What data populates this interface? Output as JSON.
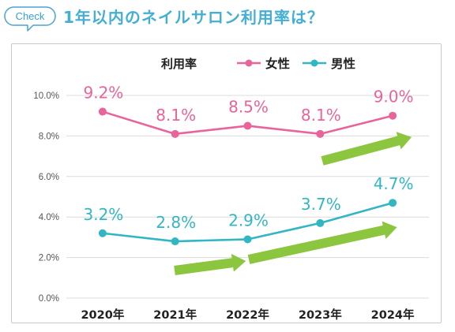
{
  "header": {
    "badge": "Check",
    "title": "1年以内のネイルサロン利用率は？"
  },
  "colors": {
    "accent": "#45aed3",
    "badge_border": "#4aa3d3",
    "women": "#e8649a",
    "men": "#33b6c3",
    "arrow": "#8cc63f",
    "grid": "#dcdcdc"
  },
  "icons": {
    "badge": "speech-bubble-icon",
    "trend": "up-arrow-icon"
  },
  "chart_data": {
    "type": "line",
    "legend_title": "利用率",
    "legend_position": "top",
    "grid": true,
    "categories": [
      "2020年",
      "2021年",
      "2022年",
      "2023年",
      "2024年"
    ],
    "ylim": [
      0,
      10
    ],
    "yticks": [
      0,
      2,
      4,
      6,
      8,
      10
    ],
    "ytick_labels": [
      "0.0%",
      "2.0%",
      "4.0%",
      "6.0%",
      "8.0%",
      "10.0%"
    ],
    "series": [
      {
        "name": "女性",
        "values": [
          9.2,
          8.1,
          8.5,
          8.1,
          9.0
        ],
        "data_labels": [
          "9.2%",
          "8.1%",
          "8.5%",
          "8.1%",
          "9.0%"
        ],
        "color": "#e8649a"
      },
      {
        "name": "男性",
        "values": [
          3.2,
          2.8,
          2.9,
          3.7,
          4.7
        ],
        "data_labels": [
          "3.2%",
          "2.8%",
          "2.9%",
          "3.7%",
          "4.7%"
        ],
        "color": "#33b6c3"
      }
    ]
  }
}
